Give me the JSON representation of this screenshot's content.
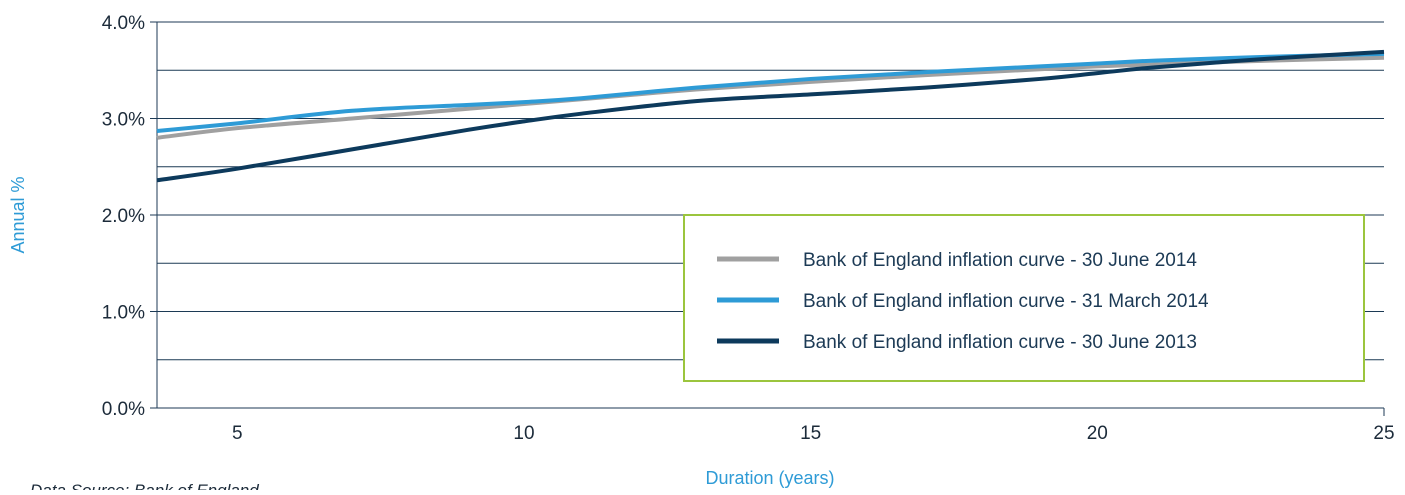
{
  "chart_data": {
    "type": "line",
    "xlabel": "Duration (years)",
    "ylabel": "Annual %",
    "xlim": [
      3.6,
      25
    ],
    "ylim": [
      0,
      4
    ],
    "x_ticks": [
      5,
      10,
      15,
      20,
      25
    ],
    "x_tick_labels": [
      "5",
      "10",
      "15",
      "20",
      "25"
    ],
    "y_ticks": [
      0,
      1,
      2,
      3,
      4
    ],
    "y_tick_labels": [
      "0.0%",
      "1.0%",
      "2.0%",
      "3.0%",
      "4.0%"
    ],
    "y_gridlines": [
      0.5,
      1,
      1.5,
      2,
      2.5,
      3,
      3.5,
      4
    ],
    "grid": true,
    "legend_position": "bottom-right",
    "series": [
      {
        "name": "Bank of England inflation curve - 30 June 2014",
        "color": "#a0a0a0",
        "x": [
          3.6,
          5,
          7,
          9,
          10,
          11,
          13,
          15,
          17,
          19,
          20,
          21,
          23,
          25
        ],
        "y": [
          2.8,
          2.9,
          3.0,
          3.1,
          3.15,
          3.2,
          3.3,
          3.38,
          3.45,
          3.51,
          3.54,
          3.56,
          3.6,
          3.63
        ]
      },
      {
        "name": "Bank of England inflation curve - 31 March 2014",
        "color": "#2e9bd6",
        "x": [
          3.6,
          5,
          7,
          9,
          10,
          11,
          13,
          15,
          17,
          19,
          20,
          21,
          23,
          25
        ],
        "y": [
          2.87,
          2.95,
          3.08,
          3.14,
          3.17,
          3.21,
          3.32,
          3.41,
          3.48,
          3.54,
          3.57,
          3.6,
          3.64,
          3.67
        ]
      },
      {
        "name": "Bank of England inflation curve - 30 June 2013",
        "color": "#0d3a5c",
        "x": [
          3.6,
          5,
          7,
          9,
          10,
          11,
          13,
          15,
          17,
          19,
          20,
          21,
          23,
          25
        ],
        "y": [
          2.36,
          2.48,
          2.68,
          2.88,
          2.97,
          3.05,
          3.18,
          3.25,
          3.32,
          3.41,
          3.47,
          3.53,
          3.62,
          3.69
        ]
      }
    ]
  },
  "footnote": "Data Source: Bank of England",
  "colors": {
    "gridline": "#1c3a55",
    "legend_border": "#9bc53d",
    "axis_title": "#2e9bd6"
  }
}
